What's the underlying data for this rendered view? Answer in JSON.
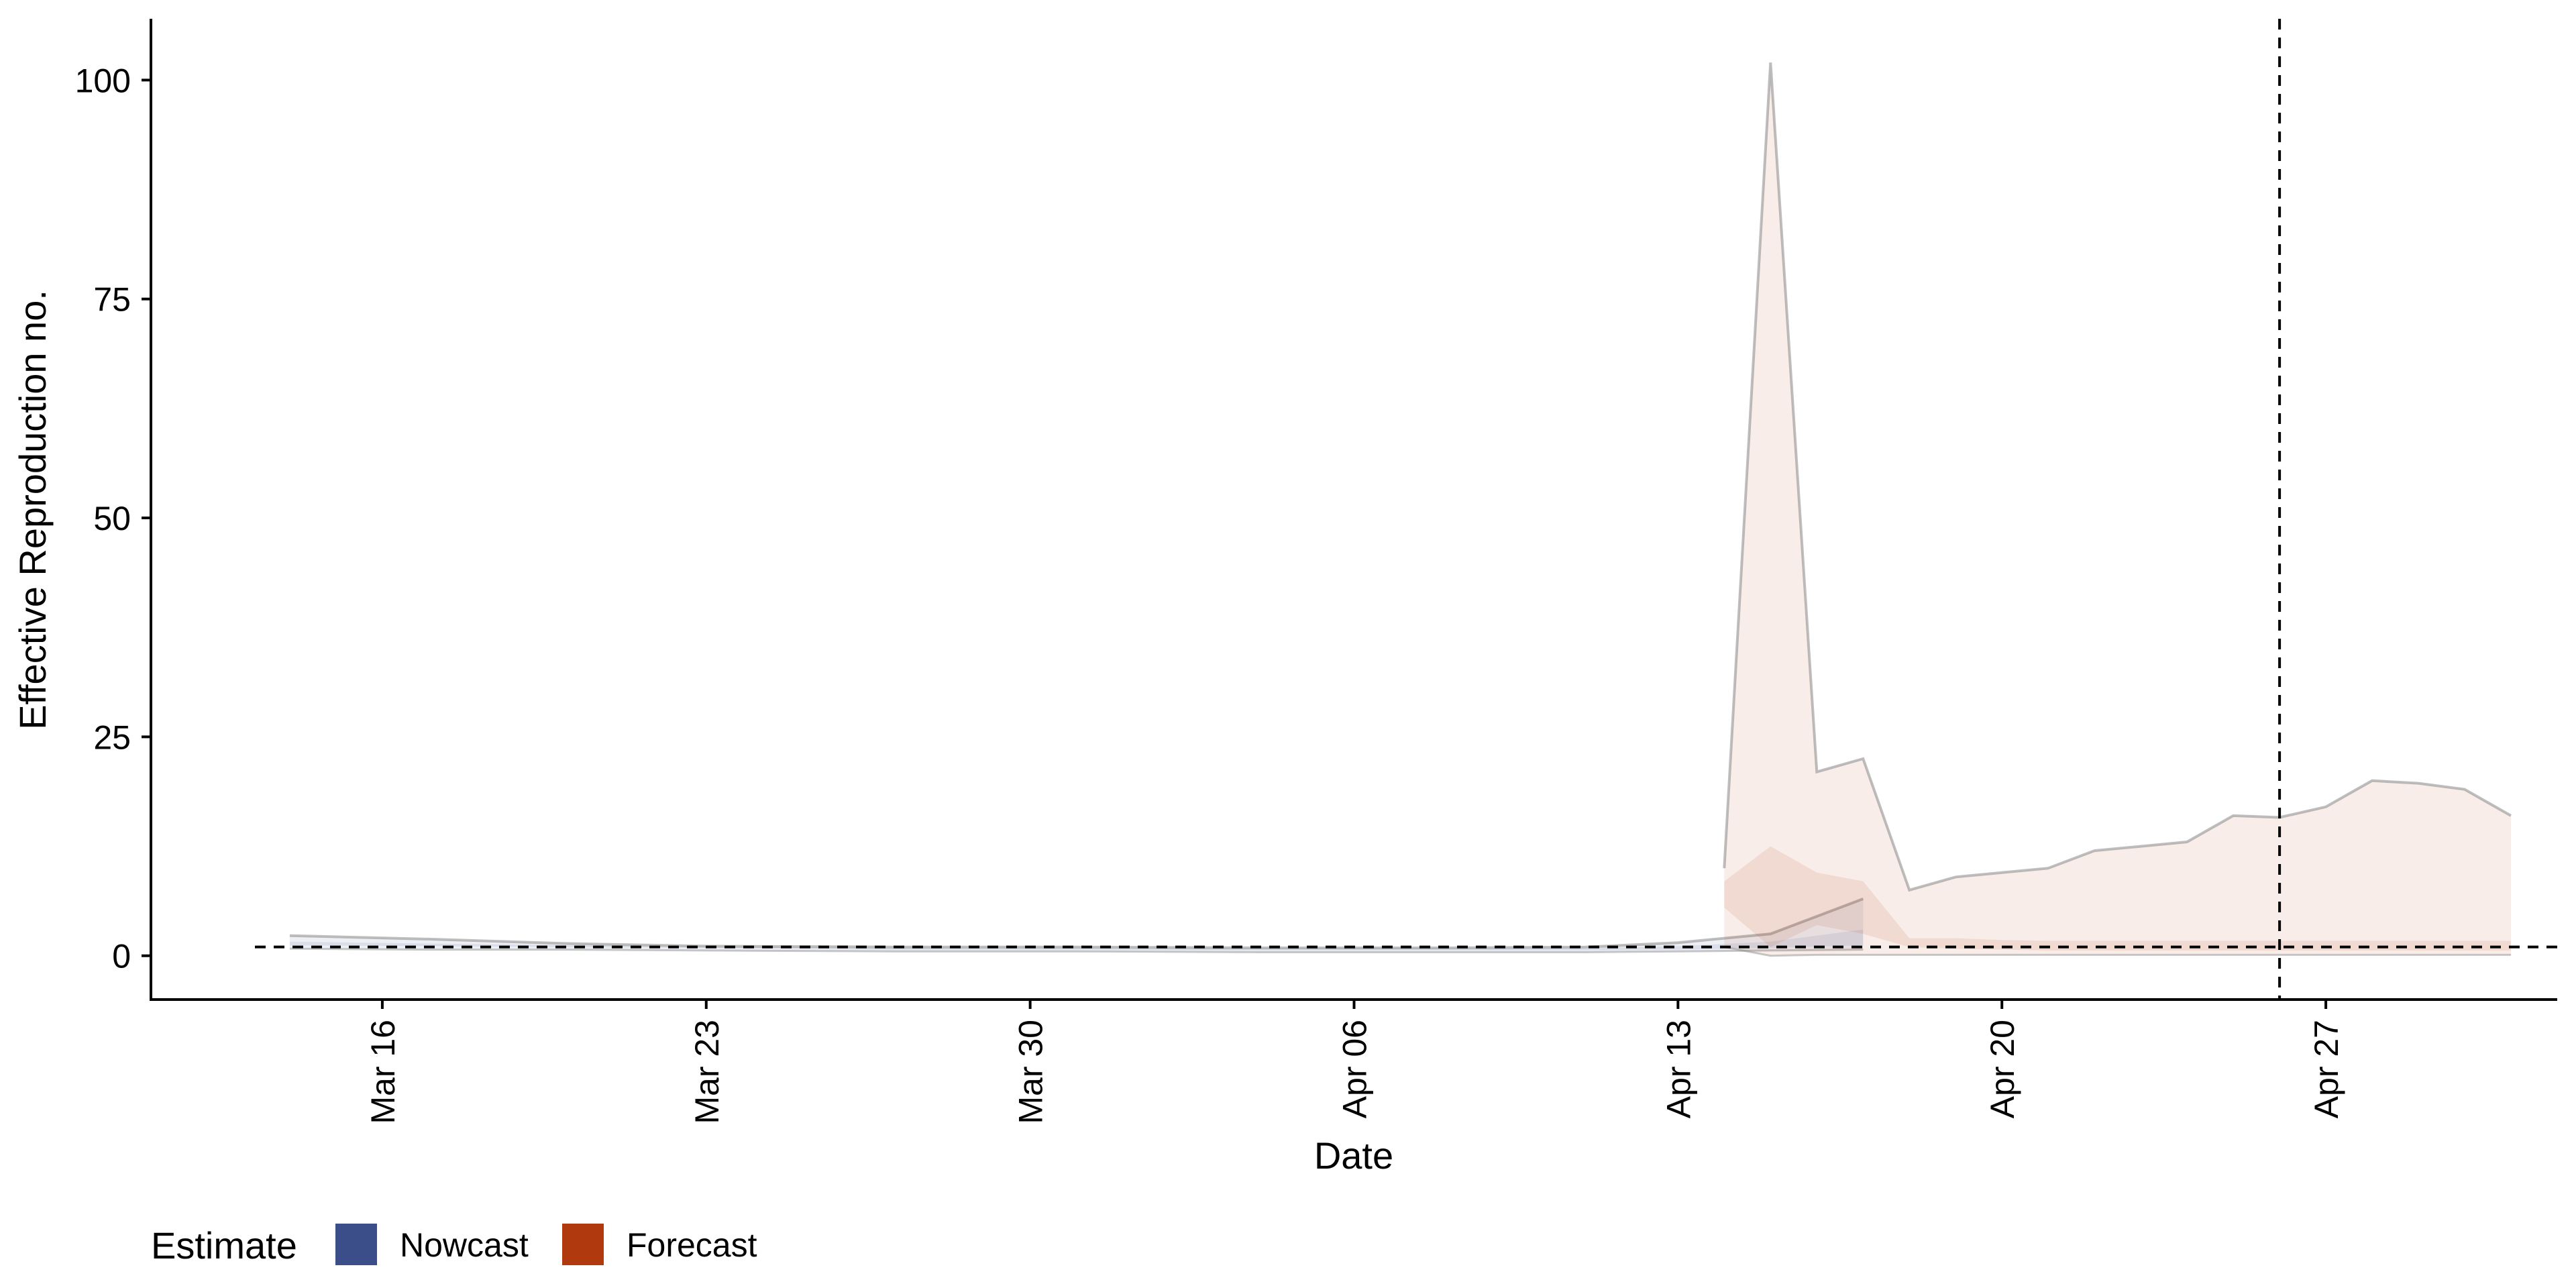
{
  "chart_data": {
    "type": "area",
    "xlabel": "Date",
    "ylabel": "Effective Reproduction no.",
    "xlim": [
      "2020-03-11",
      "2020-05-02"
    ],
    "ylim": [
      -5,
      107
    ],
    "x_ticks": [
      {
        "date": "2020-03-16",
        "label": "Mar 16"
      },
      {
        "date": "2020-03-23",
        "label": "Mar 23"
      },
      {
        "date": "2020-03-30",
        "label": "Mar 30"
      },
      {
        "date": "2020-04-06",
        "label": "Apr 06"
      },
      {
        "date": "2020-04-13",
        "label": "Apr 13"
      },
      {
        "date": "2020-04-20",
        "label": "Apr 20"
      },
      {
        "date": "2020-04-27",
        "label": "Apr 27"
      }
    ],
    "y_ticks": [
      0,
      25,
      50,
      75,
      100
    ],
    "reference_lines": {
      "horizontal_y": 1,
      "vertical_date": "2020-04-26"
    },
    "legend": {
      "title": "Estimate",
      "placement": "bottom-left",
      "items": [
        {
          "label": "Nowcast",
          "color": "#3b4e8a"
        },
        {
          "label": "Forecast",
          "color": "#b03a0e"
        }
      ]
    },
    "series": [
      {
        "name": "Nowcast",
        "color": "#3b4e8a",
        "x": [
          "2020-03-14",
          "2020-03-17",
          "2020-03-20",
          "2020-03-23",
          "2020-03-27",
          "2020-03-31",
          "2020-04-04",
          "2020-04-08",
          "2020-04-11",
          "2020-04-13",
          "2020-04-15",
          "2020-04-17"
        ],
        "outer_upper": [
          2.3,
          1.9,
          1.4,
          1.1,
          1.0,
          1.0,
          0.9,
          0.9,
          1.0,
          1.5,
          2.5,
          6.5
        ],
        "outer_lower": [
          0.8,
          0.7,
          0.7,
          0.6,
          0.5,
          0.5,
          0.4,
          0.4,
          0.4,
          0.5,
          0.6,
          0.7
        ],
        "inner_upper": [
          1.6,
          1.4,
          1.2,
          1.0,
          0.9,
          0.9,
          0.8,
          0.8,
          0.9,
          1.1,
          1.6,
          3.0
        ],
        "inner_lower": [
          1.2,
          1.1,
          1.0,
          0.9,
          0.7,
          0.7,
          0.6,
          0.6,
          0.6,
          0.7,
          0.9,
          1.2
        ]
      },
      {
        "name": "Forecast",
        "color": "#b03a0e",
        "x": [
          "2020-04-14",
          "2020-04-15",
          "2020-04-16",
          "2020-04-17",
          "2020-04-18",
          "2020-04-19",
          "2020-04-20",
          "2020-04-21",
          "2020-04-22",
          "2020-04-23",
          "2020-04-24",
          "2020-04-25",
          "2020-04-26",
          "2020-04-27",
          "2020-04-28",
          "2020-04-29",
          "2020-04-30",
          "2020-05-01"
        ],
        "outer_upper": [
          10,
          102,
          21,
          22.5,
          7.5,
          9,
          9.5,
          10,
          12,
          12.5,
          13,
          16,
          15.8,
          17,
          20,
          19.7,
          19,
          16
        ],
        "outer_lower": [
          1.0,
          0.0,
          0.1,
          0.1,
          0.1,
          0.1,
          0.1,
          0.1,
          0.1,
          0.1,
          0.1,
          0.1,
          0.1,
          0.1,
          0.1,
          0.1,
          0.1,
          0.1
        ],
        "inner_upper": [
          8.5,
          12.5,
          9.5,
          8.5,
          2.0,
          2.0,
          1.8,
          1.7,
          1.7,
          1.7,
          1.7,
          1.7,
          1.7,
          1.7,
          1.7,
          1.7,
          1.7,
          1.7
        ],
        "inner_lower": [
          5.5,
          1.0,
          3.5,
          2.5,
          1.0,
          0.8,
          0.7,
          0.6,
          0.6,
          0.6,
          0.6,
          0.6,
          0.6,
          0.6,
          0.6,
          0.6,
          0.6,
          0.6
        ]
      }
    ]
  }
}
